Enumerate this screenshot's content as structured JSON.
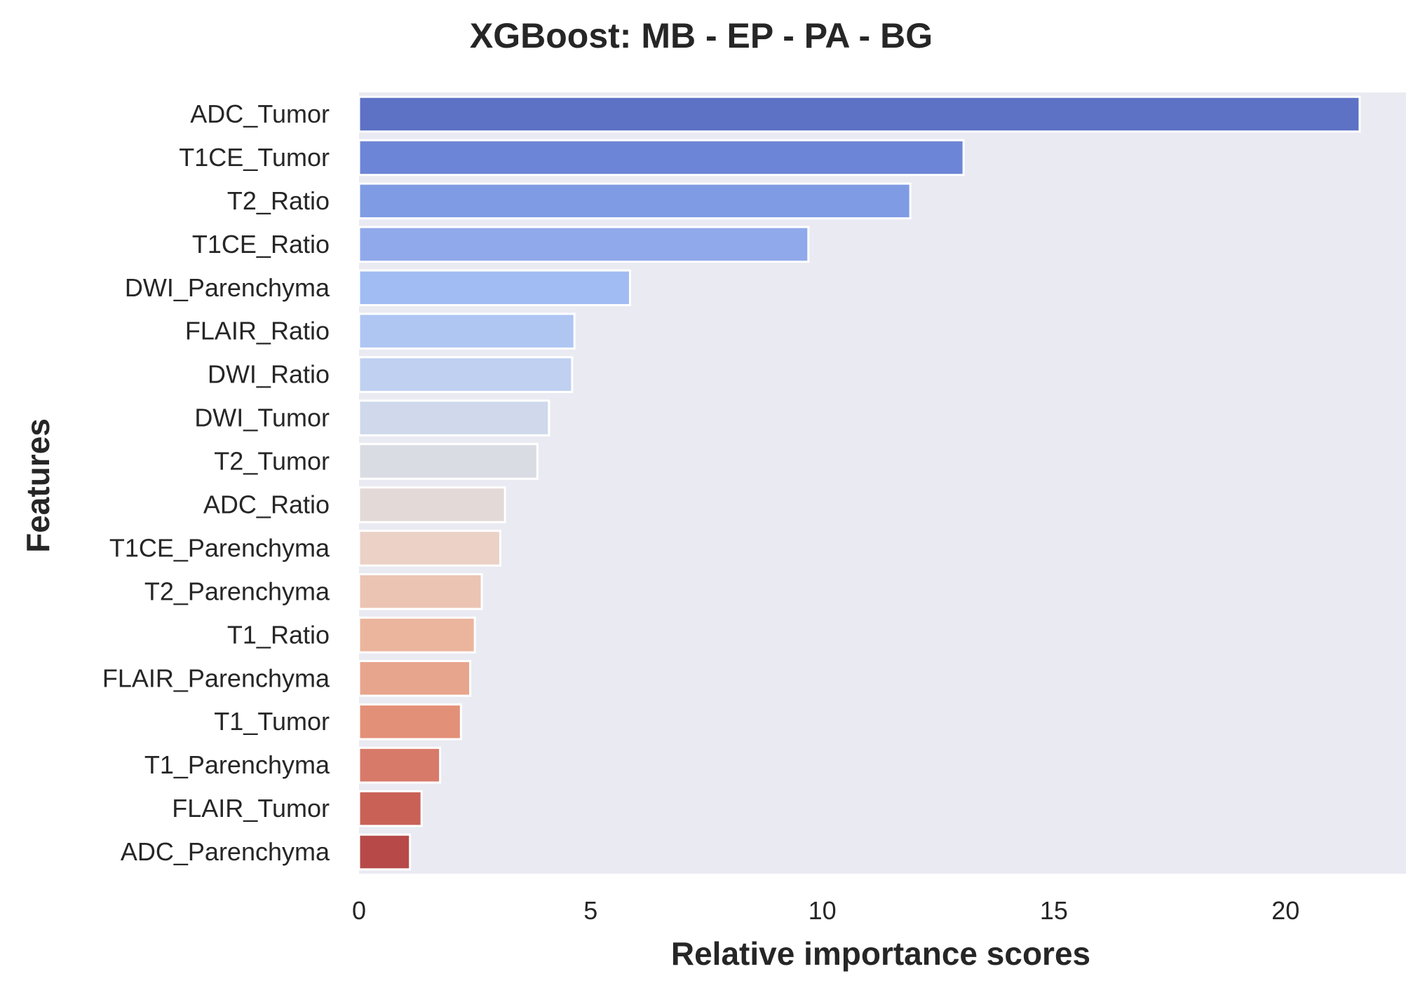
{
  "chart_data": {
    "type": "bar",
    "orientation": "horizontal",
    "title": "XGBoost: MB - EP - PA - BG",
    "xlabel": "Relative importance scores",
    "ylabel": "Features",
    "xlim": [
      0,
      22.6
    ],
    "xticks": [
      0,
      5,
      10,
      15,
      20
    ],
    "xtick_labels": [
      "0",
      "5",
      "10",
      "15",
      "20"
    ],
    "grid": false,
    "background": "#eaeaf2",
    "categories": [
      "ADC_Tumor",
      "T1CE_Tumor",
      "T2_Ratio",
      "T1CE_Ratio",
      "DWI_Parenchyma",
      "FLAIR_Ratio",
      "DWI_Ratio",
      "DWI_Tumor",
      "T2_Tumor",
      "ADC_Ratio",
      "T1CE_Parenchyma",
      "T2_Parenchyma",
      "T1_Ratio",
      "FLAIR_Parenchyma",
      "T1_Tumor",
      "T1_Parenchyma",
      "FLAIR_Tumor",
      "ADC_Parenchyma"
    ],
    "values": [
      21.6,
      13.05,
      11.9,
      9.7,
      5.85,
      4.65,
      4.6,
      4.1,
      3.85,
      3.15,
      3.05,
      2.65,
      2.5,
      2.4,
      2.2,
      1.75,
      1.35,
      1.1
    ],
    "colors": [
      "#5d71c5",
      "#6d85d6",
      "#7f9be3",
      "#90a9ea",
      "#a1bcf2",
      "#afc6f3",
      "#bfd0f0",
      "#cfd9eb",
      "#dadce3",
      "#e3d9d6",
      "#ebd1c6",
      "#ecc4b3",
      "#ebb59d",
      "#e8a58d",
      "#e39078",
      "#d77a69",
      "#c96156",
      "#b74949"
    ]
  }
}
